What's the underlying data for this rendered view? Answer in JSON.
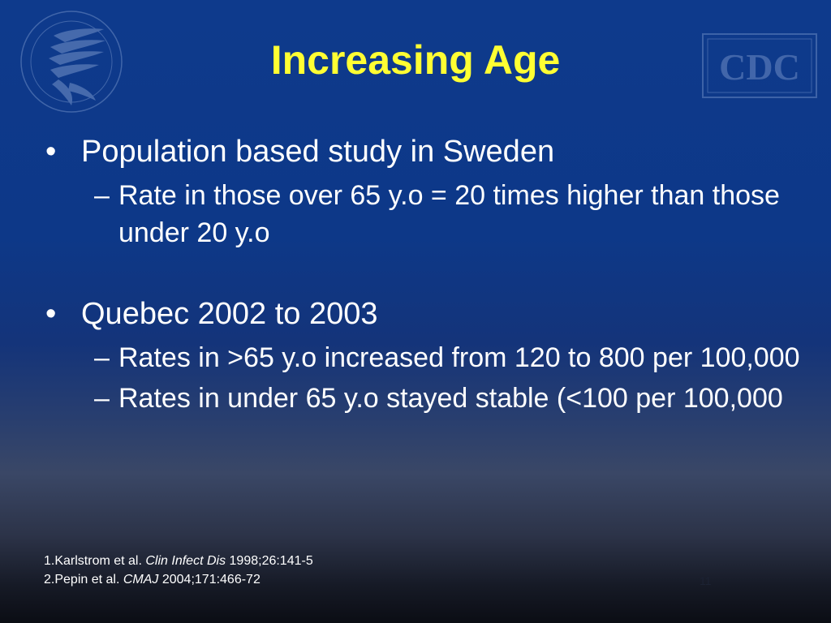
{
  "slide": {
    "title": "Increasing Age",
    "colors": {
      "background_top": "#0e3a8c",
      "background_bottom": "#0b0d14",
      "title": "#ffff33",
      "body_text": "#ffffff"
    },
    "logos": {
      "left": "hhs-eagle-logo",
      "right": "cdc-logo",
      "right_text": "CDC"
    },
    "bullets": [
      {
        "marker": "•",
        "text": "Population based study in Sweden",
        "subs": [
          {
            "marker": "–",
            "text": "Rate in those over 65 y.o = 20 times higher than those under 20 y.o"
          }
        ]
      },
      {
        "marker": "•",
        "text": "Quebec 2002 to 2003",
        "subs": [
          {
            "marker": "–",
            "text": "Rates in >65 y.o increased from 120 to 800 per 100,000"
          },
          {
            "marker": "–",
            "text": "Rates in under 65 y.o stayed stable (<100 per 100,000"
          }
        ]
      }
    ],
    "references": [
      {
        "prefix": "1.Karlstrom et al. ",
        "journal": "Clin Infect Dis",
        "suffix": " 1998;26:141-5"
      },
      {
        "prefix": "2.Pepin et al. ",
        "journal": "CMAJ",
        "suffix": " 2004;171:466-72"
      }
    ],
    "page_number": "11"
  }
}
